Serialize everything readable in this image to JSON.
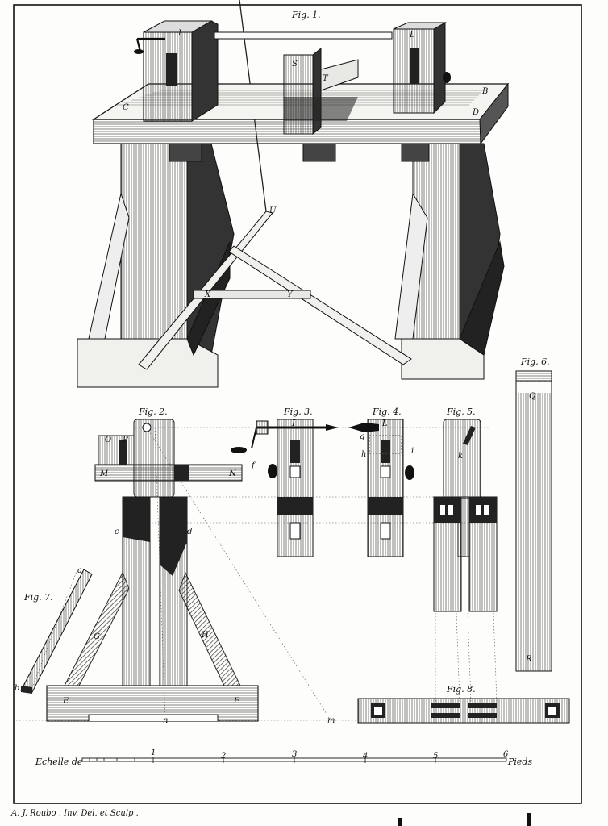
{
  "figure_labels": {
    "fig1": "Fig. 1.",
    "fig2": "Fig. 2.",
    "fig3": "Fig. 3.",
    "fig4": "Fig. 4.",
    "fig5": "Fig. 5.",
    "fig6": "Fig. 6.",
    "fig7": "Fig. 7.",
    "fig8": "Fig. 8."
  },
  "part_letters": {
    "fig1": [
      "I",
      "L",
      "S",
      "T",
      "C",
      "B",
      "D",
      "U",
      "X",
      "Y"
    ],
    "fig2": [
      "O",
      "P",
      "M",
      "N",
      "c",
      "d",
      "G",
      "H",
      "E",
      "F",
      "n",
      "m"
    ],
    "fig3": [
      "I",
      "f"
    ],
    "fig4": [
      "L",
      "g",
      "h",
      "i"
    ],
    "fig5": [
      "k"
    ],
    "fig6": [
      "Q",
      "R"
    ],
    "fig7": [
      "a",
      "b"
    ]
  },
  "scale": {
    "prefix": "Echelle de",
    "ticks": [
      "1",
      "2",
      "3",
      "4",
      "5",
      "6"
    ],
    "unit": "Pieds"
  },
  "credit": "A. J. Roubo . Inv. Del. et Sculp ."
}
